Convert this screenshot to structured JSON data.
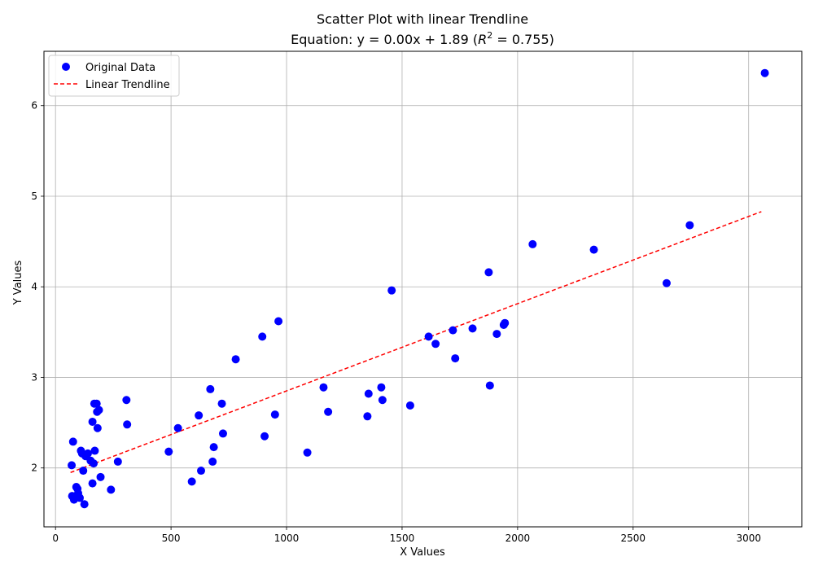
{
  "chart_data": {
    "type": "scatter",
    "title": "Scatter Plot with linear Trendline",
    "subtitle_prefix": "Equation: y = 0.00x + 1.89 (",
    "subtitle_r": "R",
    "subtitle_sup": "2",
    "subtitle_suffix": " = 0.755)",
    "xlabel": "X Values",
    "ylabel": "Y Values",
    "xlim": [
      -50,
      3230
    ],
    "ylim": [
      1.35,
      6.6
    ],
    "xticks": [
      0,
      500,
      1000,
      1500,
      2000,
      2500,
      3000
    ],
    "xtick_labels": [
      "0",
      "500",
      "1000",
      "1500",
      "2000",
      "2500",
      "3000"
    ],
    "yticks": [
      2,
      3,
      4,
      5,
      6
    ],
    "ytick_labels": [
      "2",
      "3",
      "4",
      "5",
      "6"
    ],
    "grid": true,
    "legend_position": "top-left",
    "series": [
      {
        "name": "Original Data",
        "kind": "scatter",
        "color": "#0000ff",
        "points": [
          [
            70,
            2.03
          ],
          [
            72,
            1.69
          ],
          [
            76,
            2.29
          ],
          [
            80,
            1.65
          ],
          [
            90,
            1.79
          ],
          [
            95,
            1.77
          ],
          [
            98,
            1.72
          ],
          [
            105,
            1.67
          ],
          [
            110,
            2.19
          ],
          [
            115,
            2.16
          ],
          [
            120,
            1.97
          ],
          [
            125,
            1.6
          ],
          [
            130,
            2.13
          ],
          [
            140,
            2.16
          ],
          [
            152,
            2.08
          ],
          [
            160,
            1.83
          ],
          [
            160,
            2.51
          ],
          [
            165,
            2.05
          ],
          [
            168,
            2.71
          ],
          [
            170,
            2.19
          ],
          [
            178,
            2.71
          ],
          [
            180,
            2.62
          ],
          [
            182,
            2.44
          ],
          [
            188,
            2.64
          ],
          [
            195,
            1.9
          ],
          [
            240,
            1.76
          ],
          [
            270,
            2.07
          ],
          [
            307,
            2.75
          ],
          [
            310,
            2.48
          ],
          [
            490,
            2.18
          ],
          [
            530,
            2.44
          ],
          [
            590,
            1.85
          ],
          [
            620,
            2.58
          ],
          [
            630,
            1.97
          ],
          [
            670,
            2.87
          ],
          [
            680,
            2.07
          ],
          [
            685,
            2.23
          ],
          [
            720,
            2.71
          ],
          [
            725,
            2.38
          ],
          [
            780,
            3.2
          ],
          [
            895,
            3.45
          ],
          [
            905,
            2.35
          ],
          [
            950,
            2.59
          ],
          [
            965,
            3.62
          ],
          [
            1090,
            2.17
          ],
          [
            1160,
            2.89
          ],
          [
            1180,
            2.62
          ],
          [
            1350,
            2.57
          ],
          [
            1355,
            2.82
          ],
          [
            1410,
            2.89
          ],
          [
            1415,
            2.75
          ],
          [
            1455,
            3.96
          ],
          [
            1535,
            2.69
          ],
          [
            1615,
            3.45
          ],
          [
            1645,
            3.37
          ],
          [
            1720,
            3.52
          ],
          [
            1730,
            3.21
          ],
          [
            1805,
            3.54
          ],
          [
            1875,
            4.16
          ],
          [
            1880,
            2.91
          ],
          [
            1910,
            3.48
          ],
          [
            1940,
            3.58
          ],
          [
            1945,
            3.6
          ],
          [
            2065,
            4.47
          ],
          [
            2330,
            4.41
          ],
          [
            2645,
            4.04
          ],
          [
            2745,
            4.68
          ],
          [
            3070,
            6.36
          ]
        ]
      },
      {
        "name": "Linear Trendline",
        "kind": "line",
        "color": "#ff0000",
        "dash": "dashed",
        "points": [
          [
            65,
            1.95
          ],
          [
            3055,
            4.83
          ]
        ]
      }
    ]
  }
}
